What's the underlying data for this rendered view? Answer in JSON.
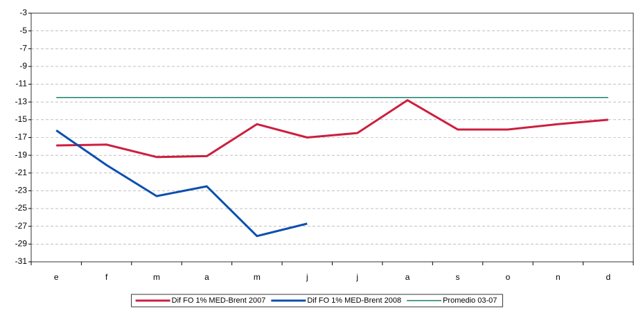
{
  "chart_data": {
    "type": "line",
    "categories": [
      "e",
      "f",
      "m",
      "a",
      "m",
      "j",
      "j",
      "a",
      "s",
      "o",
      "n",
      "d"
    ],
    "series": [
      {
        "name": "Dif FO 1% MED-Brent 2007",
        "color": "#cc1f3f",
        "values": [
          -17.9,
          -17.8,
          -19.2,
          -19.1,
          -15.5,
          -17.0,
          -16.5,
          -12.8,
          -16.1,
          -16.1,
          -15.5,
          -15.0
        ]
      },
      {
        "name": "Dif FO 1% MED-Brent 2008",
        "color": "#0b4faf",
        "values": [
          -16.2,
          -20.1,
          -23.6,
          -22.5,
          -28.1,
          -26.7,
          null,
          null,
          null,
          null,
          null,
          null
        ]
      },
      {
        "name": "Promedio 03-07",
        "color": "#1a7f6a",
        "values": [
          -12.5,
          -12.5,
          -12.5,
          -12.5,
          -12.5,
          -12.5,
          -12.5,
          -12.5,
          -12.5,
          -12.5,
          -12.5,
          -12.5
        ]
      }
    ],
    "ylim": [
      -31,
      -3
    ],
    "yticks": [
      -31,
      -29,
      -27,
      -25,
      -23,
      -21,
      -19,
      -17,
      -15,
      -13,
      -11,
      -9,
      -7,
      -5,
      -3
    ],
    "grid": true,
    "legend": "bottom"
  }
}
